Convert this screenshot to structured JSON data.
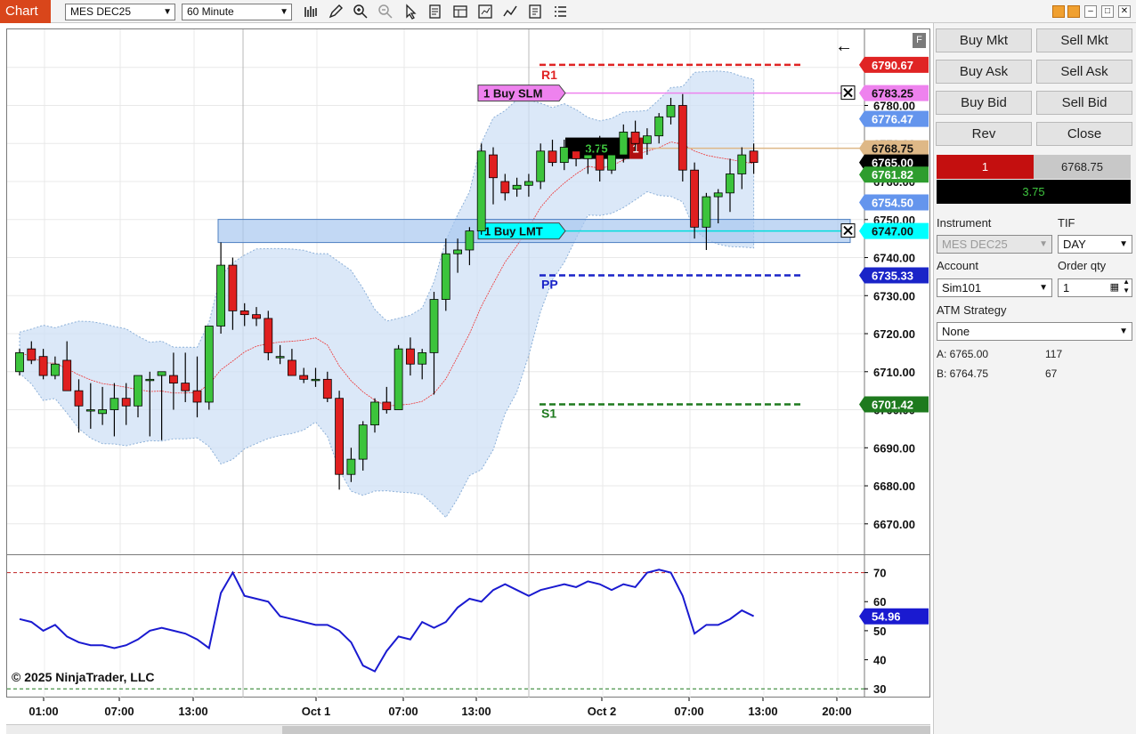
{
  "toolbar": {
    "chart_tab": "Chart",
    "instrument": "MES DEC25",
    "interval": "60 Minute",
    "icons": [
      "bar-type-icon",
      "draw-icon",
      "zoom-in-icon",
      "zoom-out-icon",
      "pointer-icon",
      "data-box-icon",
      "templates-icon",
      "strategies-icon",
      "indicators-icon",
      "properties-icon",
      "menu-icon"
    ]
  },
  "chart": {
    "copyright": "© 2025 NinjaTrader, LLC",
    "f_badge": "F",
    "price_ticks": [
      "6780.00",
      "6770.00",
      "6760.00",
      "6750.00",
      "6740.00",
      "6730.00",
      "6720.00",
      "6710.00",
      "6700.00",
      "6690.00",
      "6680.00",
      "6670.00"
    ],
    "indicator_ticks": [
      "70",
      "60",
      "50",
      "40",
      "30"
    ],
    "time_ticks": [
      "01:00",
      "07:00",
      "13:00",
      "Oct 1",
      "07:00",
      "13:00",
      "Oct 2",
      "07:00",
      "13:00",
      "20:00"
    ],
    "pivots": {
      "r1": "R1",
      "pp": "PP",
      "s1": "S1"
    },
    "markers": [
      {
        "label": "6790.67",
        "color": "#e02424"
      },
      {
        "label": "6783.25",
        "color": "#ee82ee"
      },
      {
        "label": "6776.47",
        "color": "#6495ed"
      },
      {
        "label": "6768.75",
        "color": "#deb887"
      },
      {
        "label": "6765.00",
        "color": "#000000"
      },
      {
        "label": "6761.82",
        "color": "#2e9d2e"
      },
      {
        "label": "6754.50",
        "color": "#6495ed"
      },
      {
        "label": "6747.00",
        "color": "#00ffff"
      },
      {
        "label": "6735.33",
        "color": "#1a24c8"
      },
      {
        "label": "6701.42",
        "color": "#1e7a1e"
      }
    ],
    "indicator_marker": "54.96",
    "orders": {
      "slm_label": "1 Buy SLM",
      "lmt_label": "1 Buy LMT",
      "position_pnl": "3.75",
      "position_qty": "1"
    }
  },
  "chart_data": {
    "type": "candlestick",
    "title": "",
    "xlabel": "",
    "ylabel": "",
    "ylim": [
      6662,
      6800
    ],
    "indicator_ylim": [
      27,
      76
    ],
    "candles": [
      {
        "o": 6710,
        "h": 6716,
        "l": 6709,
        "c": 6715
      },
      {
        "o": 6716,
        "h": 6718,
        "l": 6712,
        "c": 6713
      },
      {
        "o": 6714,
        "h": 6716,
        "l": 6708,
        "c": 6709
      },
      {
        "o": 6709,
        "h": 6714,
        "l": 6708,
        "c": 6712
      },
      {
        "o": 6713,
        "h": 6718,
        "l": 6705,
        "c": 6705
      },
      {
        "o": 6705,
        "h": 6708,
        "l": 6694,
        "c": 6701
      },
      {
        "o": 6700,
        "h": 6707,
        "l": 6695,
        "c": 6700
      },
      {
        "o": 6699,
        "h": 6706,
        "l": 6696,
        "c": 6700
      },
      {
        "o": 6700,
        "h": 6707,
        "l": 6693,
        "c": 6703
      },
      {
        "o": 6703,
        "h": 6707,
        "l": 6696,
        "c": 6701
      },
      {
        "o": 6701,
        "h": 6708,
        "l": 6698,
        "c": 6709
      },
      {
        "o": 6708,
        "h": 6710,
        "l": 6693,
        "c": 6708
      },
      {
        "o": 6709,
        "h": 6710,
        "l": 6692,
        "c": 6710
      },
      {
        "o": 6709,
        "h": 6715,
        "l": 6700,
        "c": 6707
      },
      {
        "o": 6707,
        "h": 6715,
        "l": 6702,
        "c": 6705
      },
      {
        "o": 6705,
        "h": 6714,
        "l": 6698,
        "c": 6702
      },
      {
        "o": 6702,
        "h": 6722,
        "l": 6700,
        "c": 6722
      },
      {
        "o": 6722,
        "h": 6744,
        "l": 6720,
        "c": 6738
      },
      {
        "o": 6738,
        "h": 6740,
        "l": 6721,
        "c": 6726
      },
      {
        "o": 6726,
        "h": 6728,
        "l": 6722,
        "c": 6725
      },
      {
        "o": 6725,
        "h": 6727,
        "l": 6722,
        "c": 6724
      },
      {
        "o": 6724,
        "h": 6726,
        "l": 6713,
        "c": 6715
      },
      {
        "o": 6714,
        "h": 6717,
        "l": 6712,
        "c": 6714
      },
      {
        "o": 6713,
        "h": 6716,
        "l": 6709,
        "c": 6709
      },
      {
        "o": 6709,
        "h": 6711,
        "l": 6707,
        "c": 6708
      },
      {
        "o": 6708,
        "h": 6711,
        "l": 6706,
        "c": 6708
      },
      {
        "o": 6708,
        "h": 6710,
        "l": 6702,
        "c": 6703
      },
      {
        "o": 6703,
        "h": 6705,
        "l": 6679,
        "c": 6683
      },
      {
        "o": 6683,
        "h": 6690,
        "l": 6681,
        "c": 6687
      },
      {
        "o": 6687,
        "h": 6697,
        "l": 6684,
        "c": 6696
      },
      {
        "o": 6696,
        "h": 6703,
        "l": 6694,
        "c": 6702
      },
      {
        "o": 6702,
        "h": 6706,
        "l": 6699,
        "c": 6700
      },
      {
        "o": 6700,
        "h": 6717,
        "l": 6700,
        "c": 6716
      },
      {
        "o": 6716,
        "h": 6719,
        "l": 6709,
        "c": 6712
      },
      {
        "o": 6712,
        "h": 6716,
        "l": 6708,
        "c": 6715
      },
      {
        "o": 6715,
        "h": 6731,
        "l": 6704,
        "c": 6729
      },
      {
        "o": 6729,
        "h": 6745,
        "l": 6726,
        "c": 6741
      },
      {
        "o": 6741,
        "h": 6745,
        "l": 6736,
        "c": 6742
      },
      {
        "o": 6742,
        "h": 6748,
        "l": 6738,
        "c": 6747
      },
      {
        "o": 6747,
        "h": 6770,
        "l": 6746,
        "c": 6768
      },
      {
        "o": 6767,
        "h": 6769,
        "l": 6754,
        "c": 6761
      },
      {
        "o": 6760,
        "h": 6762,
        "l": 6755,
        "c": 6757
      },
      {
        "o": 6758,
        "h": 6761,
        "l": 6756,
        "c": 6759
      },
      {
        "o": 6759,
        "h": 6762,
        "l": 6756,
        "c": 6760
      },
      {
        "o": 6760,
        "h": 6770,
        "l": 6758,
        "c": 6768
      },
      {
        "o": 6768,
        "h": 6771,
        "l": 6764,
        "c": 6765
      },
      {
        "o": 6765,
        "h": 6771,
        "l": 6763,
        "c": 6769
      },
      {
        "o": 6768,
        "h": 6770,
        "l": 6764,
        "c": 6766
      },
      {
        "o": 6766,
        "h": 6769,
        "l": 6762,
        "c": 6767
      },
      {
        "o": 6767,
        "h": 6772,
        "l": 6760,
        "c": 6763
      },
      {
        "o": 6763,
        "h": 6768,
        "l": 6762,
        "c": 6767
      },
      {
        "o": 6767,
        "h": 6775,
        "l": 6765,
        "c": 6773
      },
      {
        "o": 6773,
        "h": 6776,
        "l": 6768,
        "c": 6770
      },
      {
        "o": 6770,
        "h": 6774,
        "l": 6767,
        "c": 6772
      },
      {
        "o": 6772,
        "h": 6778,
        "l": 6770,
        "c": 6777
      },
      {
        "o": 6777,
        "h": 6782,
        "l": 6775,
        "c": 6780
      },
      {
        "o": 6780,
        "h": 6783,
        "l": 6760,
        "c": 6763
      },
      {
        "o": 6763,
        "h": 6765,
        "l": 6745,
        "c": 6748
      },
      {
        "o": 6748,
        "h": 6757,
        "l": 6742,
        "c": 6756
      },
      {
        "o": 6756,
        "h": 6758,
        "l": 6749,
        "c": 6757
      },
      {
        "o": 6757,
        "h": 6766,
        "l": 6752,
        "c": 6762
      },
      {
        "o": 6762,
        "h": 6769,
        "l": 6758,
        "c": 6767
      },
      {
        "o": 6768,
        "h": 6770,
        "l": 6762,
        "c": 6765
      }
    ],
    "indicator": [
      54,
      53,
      50,
      52,
      48,
      46,
      45,
      45,
      44,
      45,
      47,
      50,
      51,
      50,
      49,
      47,
      44,
      63,
      70,
      62,
      61,
      60,
      55,
      54,
      53,
      52,
      52,
      50,
      46,
      38,
      36,
      43,
      48,
      47,
      53,
      51,
      53,
      58,
      61,
      60,
      64,
      66,
      64,
      62,
      64,
      65,
      66,
      65,
      67,
      66,
      64,
      66,
      65,
      70,
      71,
      70,
      62,
      49,
      52,
      52,
      54,
      57,
      55
    ]
  }
}
